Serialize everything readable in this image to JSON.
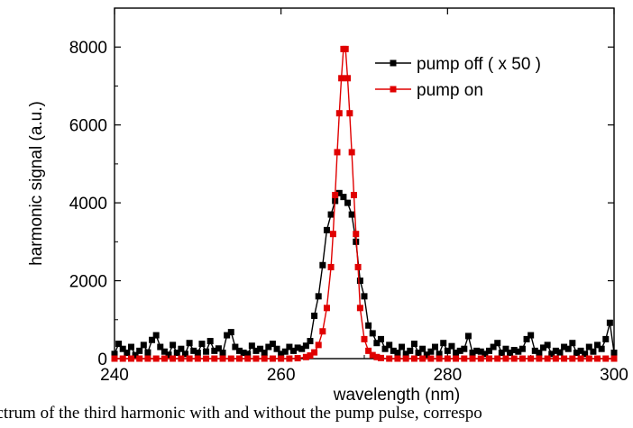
{
  "caption": "Spectrum of the third harmonic with and without the pump pulse, correspo",
  "colors": {
    "pump_off": "#000000",
    "pump_on": "#e00000",
    "axis": "#000000"
  },
  "chart_data": {
    "type": "line",
    "xlabel": "wavelength (nm)",
    "ylabel": "harmonic signal (a.u.)",
    "xlim": [
      240,
      300
    ],
    "ylim": [
      0,
      9000
    ],
    "xticks": [
      "240",
      "260",
      "280",
      "300"
    ],
    "yticks": [
      "0",
      "2000",
      "4000",
      "6000",
      "8000"
    ],
    "grid": false,
    "legend_position": "top-right",
    "series": [
      {
        "name": "pump off ( x 50 )",
        "marker": "square",
        "x": [
          240,
          240.5,
          241,
          241.5,
          242,
          242.5,
          243,
          243.5,
          244,
          244.5,
          245,
          245.5,
          246,
          246.5,
          247,
          247.5,
          248,
          248.5,
          249,
          249.5,
          250,
          250.5,
          251,
          251.5,
          252,
          252.5,
          253,
          253.5,
          254,
          254.5,
          255,
          255.5,
          256,
          256.5,
          257,
          257.5,
          258,
          258.5,
          259,
          259.5,
          260,
          260.5,
          261,
          261.5,
          262,
          262.5,
          263,
          263.5,
          264,
          264.5,
          265,
          265.5,
          266,
          266.5,
          267,
          267.5,
          268,
          268.5,
          269,
          269.5,
          270,
          270.5,
          271,
          271.5,
          272,
          272.5,
          273,
          273.5,
          274,
          274.5,
          275,
          275.5,
          276,
          276.5,
          277,
          277.5,
          278,
          278.5,
          279,
          279.5,
          280,
          280.5,
          281,
          281.5,
          282,
          282.5,
          283,
          283.5,
          284,
          284.5,
          285,
          285.5,
          286,
          286.5,
          287,
          287.5,
          288,
          288.5,
          289,
          289.5,
          290,
          290.5,
          291,
          291.5,
          292,
          292.5,
          293,
          293.5,
          294,
          294.5,
          295,
          295.5,
          296,
          296.5,
          297,
          297.5,
          298,
          298.5,
          299,
          299.5,
          300
        ],
        "y": [
          120,
          380,
          250,
          150,
          300,
          90,
          200,
          350,
          160,
          480,
          600,
          300,
          180,
          100,
          350,
          150,
          250,
          120,
          400,
          200,
          150,
          380,
          180,
          450,
          200,
          260,
          150,
          600,
          680,
          300,
          200,
          150,
          120,
          330,
          200,
          250,
          150,
          300,
          380,
          250,
          120,
          180,
          300,
          200,
          280,
          250,
          330,
          450,
          1100,
          1600,
          2400,
          3300,
          3700,
          4050,
          4250,
          4150,
          4000,
          3700,
          3000,
          2000,
          1600,
          850,
          650,
          400,
          500,
          250,
          350,
          200,
          150,
          300,
          120,
          200,
          380,
          150,
          250,
          100,
          180,
          300,
          120,
          400,
          200,
          320,
          150,
          200,
          250,
          580,
          150,
          200,
          180,
          120,
          200,
          300,
          400,
          150,
          250,
          150,
          220,
          180,
          250,
          500,
          600,
          200,
          150,
          280,
          350,
          120,
          200,
          160,
          300,
          250,
          400,
          150,
          200,
          120,
          300,
          180,
          350,
          250,
          500,
          920,
          150
        ],
        "values_approximate": true
      },
      {
        "name": "pump on",
        "marker": "square",
        "x": [
          240,
          241,
          242,
          243,
          244,
          245,
          246,
          247,
          248,
          249,
          250,
          251,
          252,
          253,
          254,
          255,
          256,
          257,
          258,
          259,
          260,
          261,
          262,
          263,
          263.5,
          264,
          264.5,
          265,
          265.5,
          266,
          266.25,
          266.5,
          266.75,
          267,
          267.25,
          267.5,
          267.75,
          268,
          268.25,
          268.5,
          268.75,
          269,
          269.25,
          269.5,
          270,
          270.5,
          271,
          271.5,
          272,
          273,
          274,
          275,
          276,
          277,
          278,
          279,
          280,
          281,
          282,
          283,
          284,
          285,
          286,
          287,
          288,
          289,
          290,
          291,
          292,
          293,
          294,
          295,
          296,
          297,
          298,
          299,
          300
        ],
        "y": [
          0,
          0,
          0,
          0,
          0,
          0,
          0,
          0,
          0,
          0,
          0,
          0,
          0,
          0,
          0,
          0,
          0,
          0,
          0,
          0,
          0,
          0,
          10,
          40,
          80,
          160,
          350,
          700,
          1300,
          2350,
          3200,
          4200,
          5300,
          6300,
          7200,
          7950,
          7950,
          7200,
          6300,
          5300,
          4200,
          3200,
          2350,
          1300,
          500,
          200,
          90,
          40,
          15,
          0,
          0,
          0,
          0,
          0,
          0,
          0,
          0,
          0,
          0,
          0,
          0,
          0,
          0,
          0,
          0,
          0,
          0,
          0,
          0,
          0,
          0,
          0,
          0,
          0,
          0,
          0,
          0
        ],
        "values_approximate": true
      }
    ]
  }
}
